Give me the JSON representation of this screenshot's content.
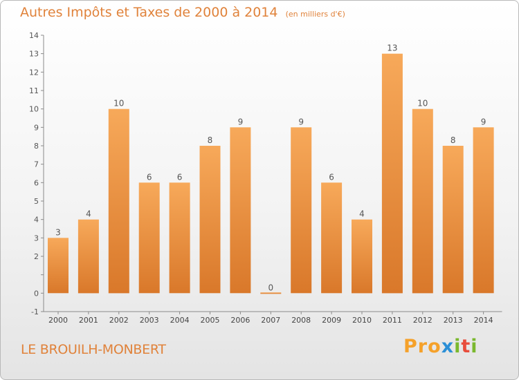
{
  "header": {
    "title": "Autres Impôts et Taxes de 2000 à 2014",
    "subtitle": "(en milliers d'€)"
  },
  "footer": {
    "place_name": "LE BROUILH-MONBERT",
    "brand": "Proxiti"
  },
  "colors": {
    "accent": "#e0823a",
    "bar_light": "#f7a95a",
    "bar_dark": "#d9782a",
    "brand_letters": [
      "#f5a12a",
      "#f5a12a",
      "#f5a12a",
      "#2b8fd6",
      "#7ab82e",
      "#e84d3c",
      "#7ab82e"
    ]
  },
  "chart_data": {
    "type": "bar",
    "categories": [
      "2000",
      "2001",
      "2002",
      "2003",
      "2004",
      "2005",
      "2006",
      "2007",
      "2008",
      "2009",
      "2010",
      "2011",
      "2012",
      "2013",
      "2014"
    ],
    "values": [
      3,
      4,
      10,
      6,
      6,
      8,
      9,
      0,
      9,
      6,
      4,
      13,
      10,
      8,
      9
    ],
    "data_labels": [
      "3",
      "4",
      "10",
      "6",
      "6",
      "8",
      "9",
      "0",
      "9",
      "6",
      "4",
      "13",
      "10",
      "8",
      "9"
    ],
    "title": "Autres Impôts et Taxes de 2000 à 2014",
    "ylim": [
      -1,
      14
    ],
    "yticks": [
      -1,
      0,
      1,
      2,
      3,
      4,
      5,
      6,
      7,
      8,
      9,
      10,
      11,
      12,
      13,
      14
    ],
    "ytick_labels": [
      "-1",
      "0",
      "",
      "2",
      "3",
      "4",
      "5",
      "6",
      "7",
      "8",
      "9",
      "10",
      "11",
      "12",
      "13",
      "14"
    ],
    "grid": false
  }
}
